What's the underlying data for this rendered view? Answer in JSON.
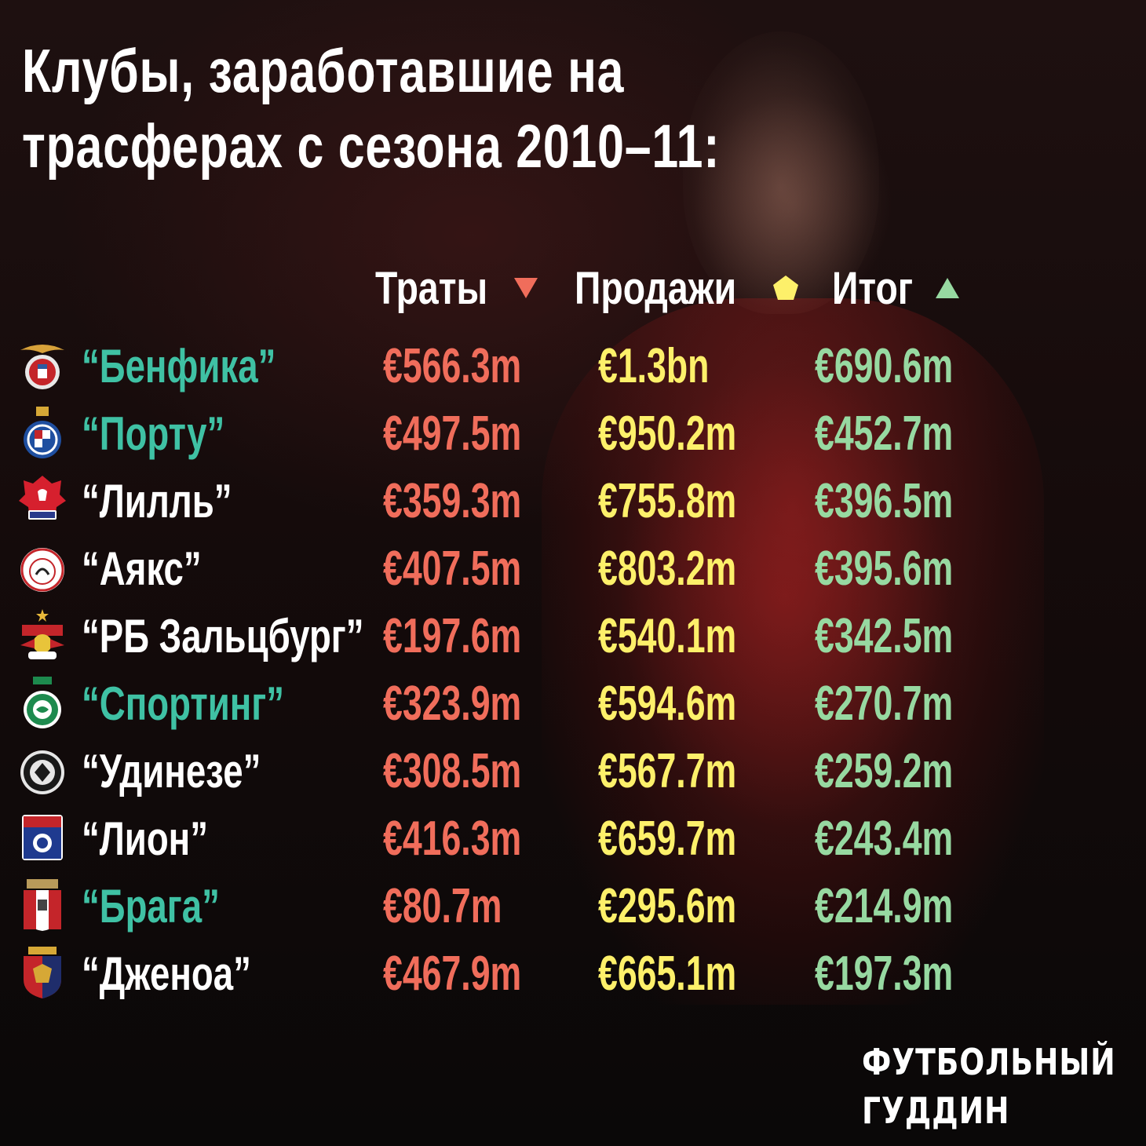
{
  "title": "Клубы, заработавшие на трасферах с сезона 2010–11:",
  "headers": {
    "spend": "Траты",
    "sales": "Продажи",
    "net": "Итог",
    "spend_icon": "down-triangle-icon",
    "sales_icon": "pentagon-icon",
    "net_icon": "up-triangle-icon"
  },
  "colors": {
    "spend": "#f06d5b",
    "sales": "#fdf06a",
    "net": "#97d9a1",
    "club_highlight": "#3fc1a4",
    "club_default": "#ffffff"
  },
  "clubs": [
    {
      "name": "“Бенфика”",
      "crest": "benfica-crest-icon",
      "color": "#3fc1a4",
      "spend": "€566.3m",
      "sales": "€1.3bn",
      "net": "€690.6m"
    },
    {
      "name": "“Порту”",
      "crest": "porto-crest-icon",
      "color": "#3fc1a4",
      "spend": "€497.5m",
      "sales": "€950.2m",
      "net": "€452.7m"
    },
    {
      "name": "“Лилль”",
      "crest": "lille-crest-icon",
      "color": "#ffffff",
      "spend": "€359.3m",
      "sales": "€755.8m",
      "net": "€396.5m"
    },
    {
      "name": "“Аякс”",
      "crest": "ajax-crest-icon",
      "color": "#ffffff",
      "spend": "€407.5m",
      "sales": "€803.2m",
      "net": "€395.6m"
    },
    {
      "name": "“РБ Зальцбург”",
      "crest": "salzburg-crest-icon",
      "color": "#ffffff",
      "spend": "€197.6m",
      "sales": "€540.1m",
      "net": "€342.5m"
    },
    {
      "name": "“Спортинг”",
      "crest": "sporting-crest-icon",
      "color": "#3fc1a4",
      "spend": "€323.9m",
      "sales": "€594.6m",
      "net": "€270.7m"
    },
    {
      "name": "“Удинезе”",
      "crest": "udinese-crest-icon",
      "color": "#ffffff",
      "spend": "€308.5m",
      "sales": "€567.7m",
      "net": "€259.2m"
    },
    {
      "name": "“Лион”",
      "crest": "lyon-crest-icon",
      "color": "#ffffff",
      "spend": "€416.3m",
      "sales": "€659.7m",
      "net": "€243.4m"
    },
    {
      "name": "“Брага”",
      "crest": "braga-crest-icon",
      "color": "#3fc1a4",
      "spend": "€80.7m",
      "sales": "€295.6m",
      "net": "€214.9m"
    },
    {
      "name": "“Дженоа”",
      "crest": "genoa-crest-icon",
      "color": "#ffffff",
      "spend": "€467.9m",
      "sales": "€665.1m",
      "net": "€197.3m"
    }
  ],
  "brand": {
    "line1": "ФУТБОЛЬНЫЙ",
    "line2": "ГУДДИН"
  }
}
